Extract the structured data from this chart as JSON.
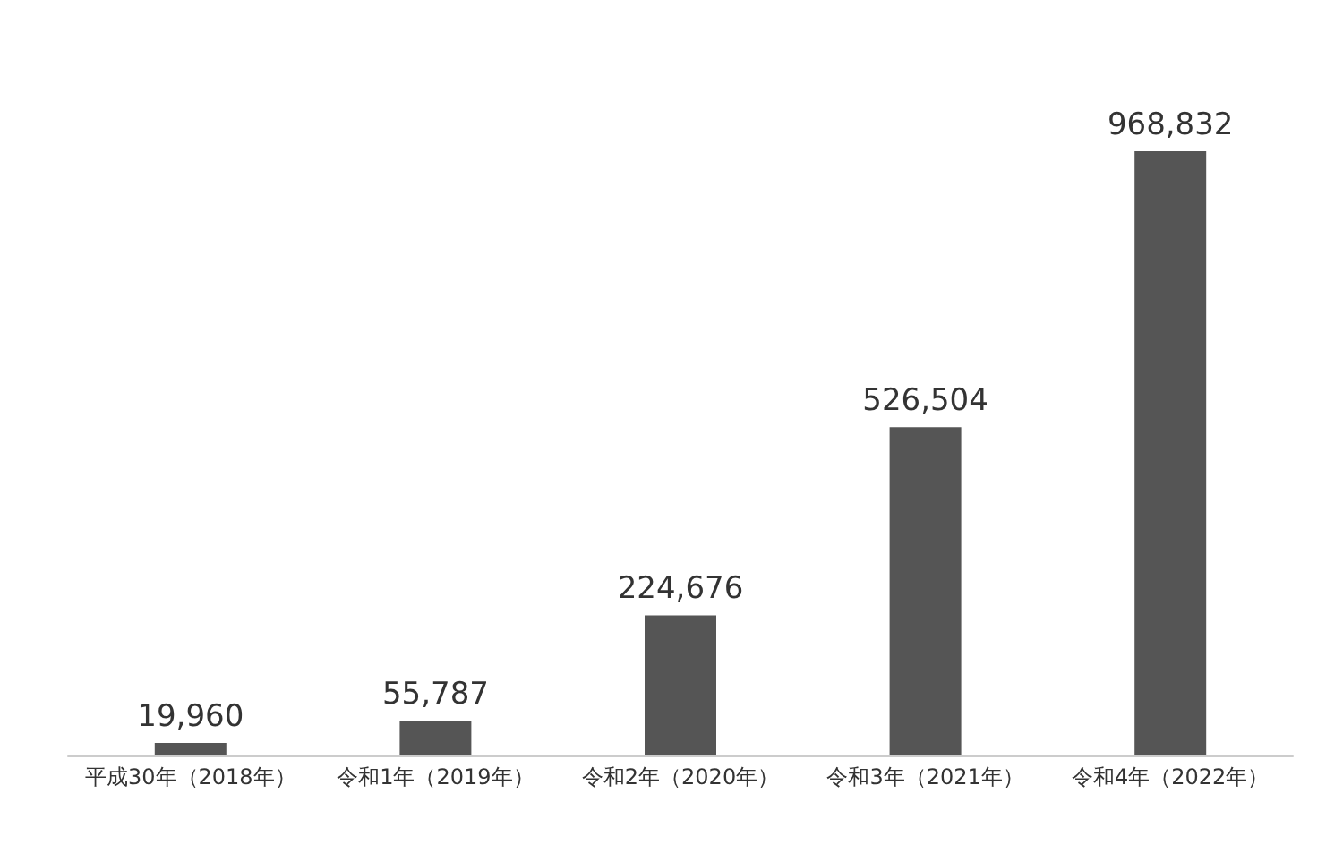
{
  "chart_data": {
    "type": "bar",
    "categories": [
      "平成30年（2018年）",
      "令和1年（2019年）",
      "令和2年（2020年）",
      "令和3年（2021年）",
      "令和4年（2022年）"
    ],
    "values": [
      19960,
      55787,
      224676,
      526504,
      968832
    ],
    "value_labels": [
      "19,960",
      "55,787",
      "224,676",
      "526,504",
      "968,832"
    ],
    "color": "#555555"
  }
}
